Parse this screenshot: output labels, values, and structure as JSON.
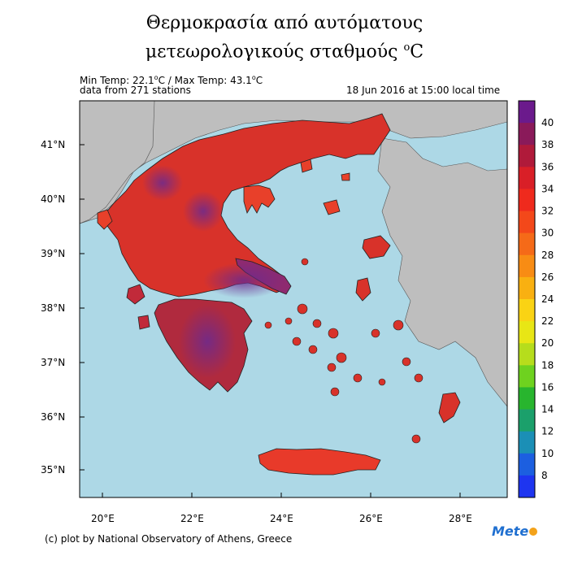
{
  "title": {
    "line1": "Θερμοκρασία από αυτόματους",
    "line2": "μετεωρολογικούς σταθμούς ",
    "unit_sup": "o",
    "unit": "C"
  },
  "info": {
    "min_prefix": "Min Temp: 22.1",
    "min_unit": "C",
    "max_prefix": " / Max Temp: 43.1",
    "max_unit": "C",
    "deg_sup": "o",
    "stations": "data from 271 stations",
    "timestamp": "18 Jun 2016 at 15:00 local time"
  },
  "footer": "(c) plot by National Observatory of Athens, Greece",
  "logo": "Mete",
  "axes": {
    "lat_labels": [
      "41°N",
      "40°N",
      "39°N",
      "38°N",
      "37°N",
      "36°N",
      "35°N"
    ],
    "lon_labels": [
      "20°E",
      "22°E",
      "24°E",
      "26°E",
      "28°E"
    ]
  },
  "colorbar": {
    "labels": [
      "40",
      "38",
      "36",
      "34",
      "32",
      "30",
      "28",
      "26",
      "24",
      "22",
      "20",
      "18",
      "16",
      "14",
      "12",
      "10",
      "8"
    ],
    "colors": [
      "#6b1a8c",
      "#8a1a5a",
      "#b01a3a",
      "#d91f27",
      "#ef2a1d",
      "#f3481a",
      "#f56a18",
      "#f88c14",
      "#f9b011",
      "#fad314",
      "#e8e615",
      "#b6dd1c",
      "#6ed21f",
      "#28b52e",
      "#1ba06b",
      "#1b8fb6",
      "#1c5fe0",
      "#1e35f0"
    ]
  },
  "colors": {
    "sea": "#add8e6",
    "land_other": "#bebebe",
    "heat_high": "#7a2a8a",
    "heat_mid": "#c0283a",
    "heat_low": "#e8402a"
  }
}
